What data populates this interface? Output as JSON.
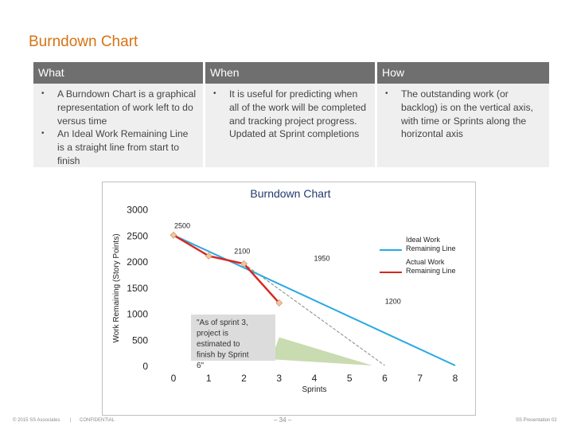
{
  "page": {
    "title": "Burndown Chart",
    "columns": [
      {
        "header": "What",
        "bullets": [
          "A Burndown Chart is a graphical representation of work left to do versus time",
          "An Ideal Work Remaining Line is a straight line from start to finish"
        ]
      },
      {
        "header": "When",
        "bullets": [
          "It is useful for predicting when all of the work will be completed and tracking project progress.  Updated at Sprint completions"
        ]
      },
      {
        "header": "How",
        "bullets": [
          "The outstanding work (or backlog) is on the vertical axis, with time or Sprints along the horizontal axis"
        ]
      }
    ],
    "footer": {
      "left": "© 2015 SS Associates",
      "sep": "|",
      "confidential": "CONFIDENTIAL",
      "page_num": "– 34 –",
      "right": "SS Presentation 02"
    }
  },
  "chart_data": {
    "type": "line",
    "title": "Burndown Chart",
    "xlabel": "Sprints",
    "ylabel": "Work Remaining (Story Points)",
    "xlim": [
      0,
      8
    ],
    "ylim": [
      0,
      3000
    ],
    "x_ticks": [
      "0",
      "1",
      "2",
      "3",
      "4",
      "5",
      "6",
      "7",
      "8"
    ],
    "y_ticks": [
      "0",
      "500",
      "1000",
      "1500",
      "2000",
      "2500",
      "3000"
    ],
    "y_tick_values": [
      0,
      500,
      1000,
      1500,
      2000,
      2500,
      3000
    ],
    "legend_position": "right",
    "series": [
      {
        "name": "Ideal Work Remaining Line",
        "color": "#2aaae2",
        "x": [
          0,
          8
        ],
        "y": [
          2500,
          0
        ]
      },
      {
        "name": "Actual Work Remaining Line",
        "color": "#d9261c",
        "x": [
          0,
          1,
          2,
          3
        ],
        "y": [
          2500,
          2100,
          1950,
          1200
        ],
        "marker_color": "#f3c49f"
      }
    ],
    "data_labels": [
      "2500",
      "2100",
      "1950",
      "1200"
    ],
    "projection": {
      "x": [
        2,
        6
      ],
      "y": [
        1950,
        0
      ],
      "color": "#888888"
    },
    "shaded_area_color": "#c9dbb0",
    "annotation": {
      "text": "\"As of sprint 3, project is estimated to finish by Sprint 6\"",
      "bg": "#dcdcdc"
    }
  }
}
